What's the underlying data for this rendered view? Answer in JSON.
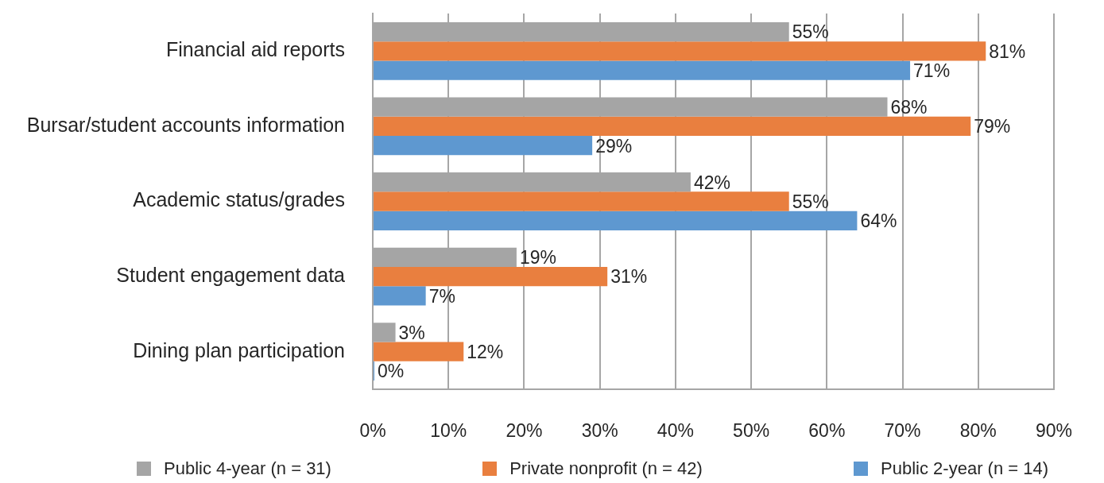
{
  "chart_data": {
    "type": "bar",
    "orientation": "horizontal",
    "categories": [
      "Financial aid reports",
      "Bursar/student accounts information",
      "Academic status/grades",
      "Student engagement data",
      "Dining plan participation"
    ],
    "series": [
      {
        "name": "Public 4-year (n = 31)",
        "color": "#a5a5a5",
        "values": [
          55,
          68,
          42,
          19,
          3
        ],
        "value_labels": [
          "55%",
          "68%",
          "42%",
          "19%",
          "3%"
        ]
      },
      {
        "name": "Private nonprofit (n = 42)",
        "color": "#e97f3f",
        "values": [
          81,
          79,
          55,
          31,
          12
        ],
        "value_labels": [
          "81%",
          "79%",
          "55%",
          "31%",
          "12%"
        ]
      },
      {
        "name": "Public 2-year (n = 14)",
        "color": "#5e98d0",
        "values": [
          71,
          29,
          64,
          7,
          0
        ],
        "value_labels": [
          "71%",
          "29%",
          "64%",
          "7%",
          "0%"
        ]
      }
    ],
    "xlim": [
      0,
      90
    ],
    "xticks": [
      {
        "value": 0,
        "label": "0%"
      },
      {
        "value": 10,
        "label": "10%"
      },
      {
        "value": 20,
        "label": "20%"
      },
      {
        "value": 30,
        "label": "30%"
      },
      {
        "value": 40,
        "label": "40%"
      },
      {
        "value": 50,
        "label": "50%"
      },
      {
        "value": 60,
        "label": "60%"
      },
      {
        "value": 70,
        "label": "70%"
      },
      {
        "value": 80,
        "label": "80%"
      },
      {
        "value": 90,
        "label": "90%"
      }
    ],
    "grid": "x",
    "legend": "bottom"
  }
}
